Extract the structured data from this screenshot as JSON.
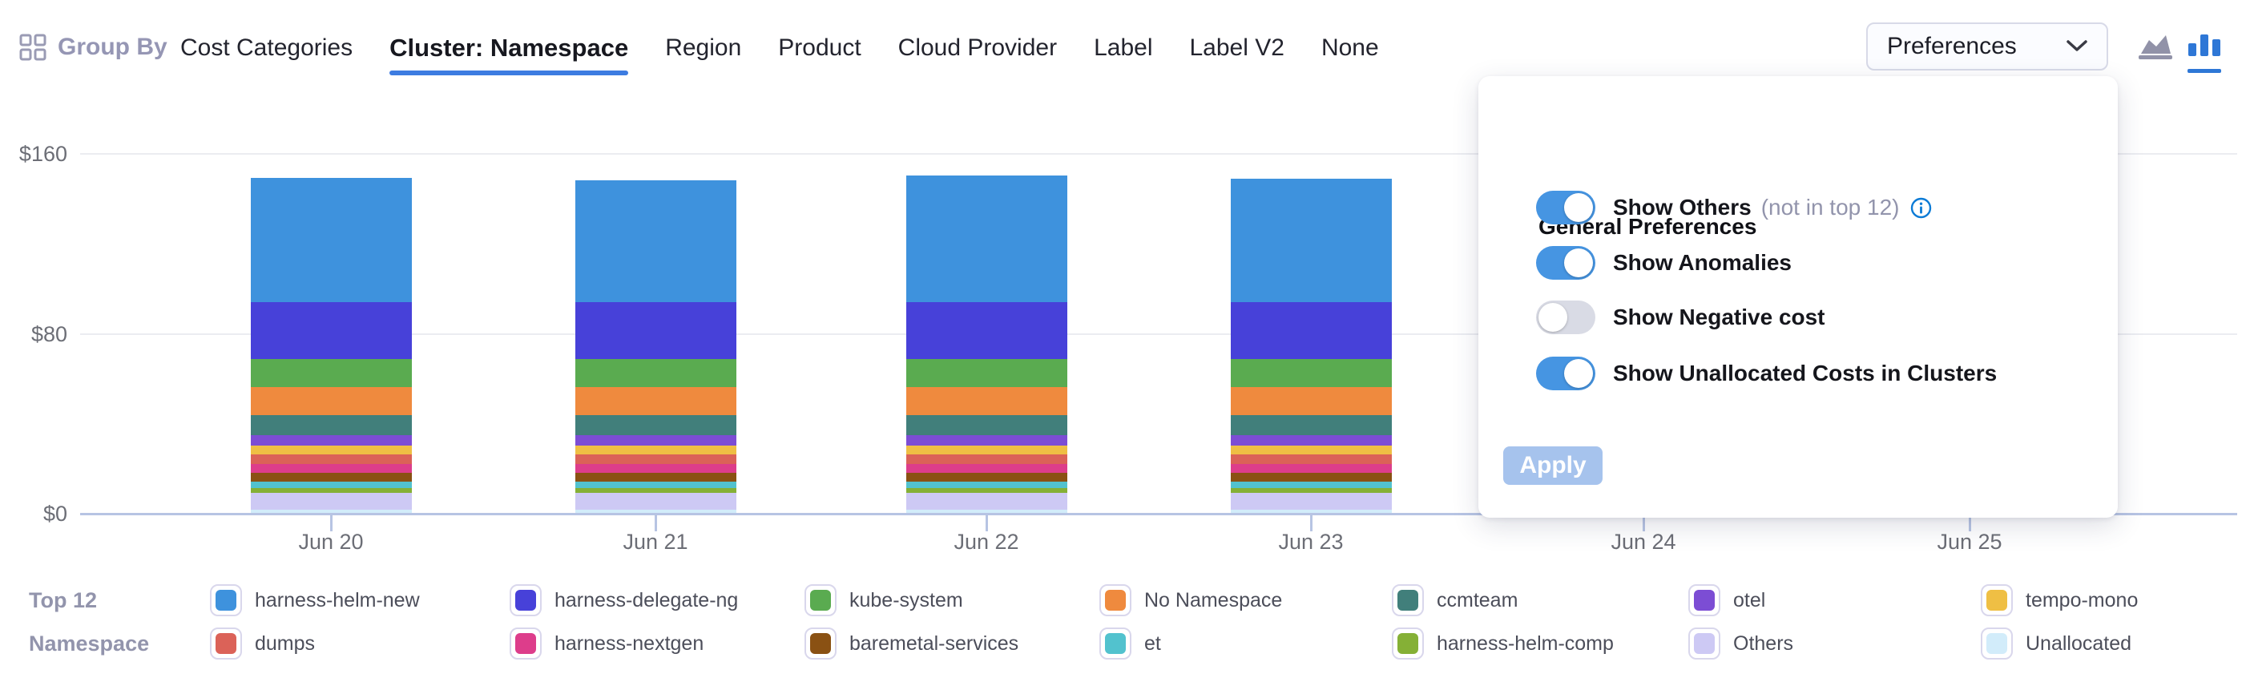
{
  "toolbar": {
    "group_by_label": "Group By",
    "tabs": [
      {
        "label": "Cost Categories",
        "active": false
      },
      {
        "label": "Cluster: Namespace",
        "active": true
      },
      {
        "label": "Region",
        "active": false
      },
      {
        "label": "Product",
        "active": false
      },
      {
        "label": "Cloud Provider",
        "active": false
      },
      {
        "label": "Label",
        "active": false
      },
      {
        "label": "Label V2",
        "active": false
      },
      {
        "label": "None",
        "active": false
      }
    ],
    "preferences_button_label": "Preferences",
    "active_chart_type": "bar"
  },
  "preferences_panel": {
    "title": "General Preferences",
    "toggles": [
      {
        "label": "Show Others",
        "suffix": "(not in top 12)",
        "info_icon": true,
        "state": "on"
      },
      {
        "label": "Show Anomalies",
        "suffix": "",
        "info_icon": false,
        "state": "on"
      },
      {
        "label": "Show Negative cost",
        "suffix": "",
        "info_icon": false,
        "state": "off"
      },
      {
        "label": "Show Unallocated Costs in Clusters",
        "suffix": "",
        "info_icon": false,
        "state": "on"
      }
    ],
    "apply_label": "Apply",
    "apply_enabled": false
  },
  "legend": {
    "title_line1": "Top 12",
    "title_line2": "Namespace"
  },
  "colors": {
    "accent_blue": "#3d7ce1",
    "toggle_on": "#4695e2",
    "apply_disabled": "#a6c3ed",
    "info_icon_blue": "#0b7bd6",
    "axis_line": "#b7c4e3",
    "gridline": "#ebecf1",
    "muted_text": "#9294ac",
    "chart_icon_gray": "#9192a8",
    "chart_icon_blue": "#2e77d6"
  },
  "chart_data": {
    "type": "bar",
    "stacked": true,
    "title": "",
    "xlabel": "",
    "ylabel": "",
    "ylim": [
      0,
      160
    ],
    "y_tick_labels": [
      "$160",
      "$80",
      "$0"
    ],
    "grid": "horizontal",
    "legend_position": "bottom",
    "categories": [
      "Jun 20",
      "Jun 21",
      "Jun 22",
      "Jun 23",
      "Jun 24",
      "Jun 25"
    ],
    "series": [
      {
        "name": "harness-helm-new",
        "color": "#3e92dd",
        "values": [
          55.4,
          54.0,
          56.2,
          55.0,
          null,
          null
        ]
      },
      {
        "name": "harness-delegate-ng",
        "color": "#4741d9",
        "values": [
          25.3,
          25.3,
          25.3,
          25.3,
          null,
          null
        ]
      },
      {
        "name": "kube-system",
        "color": "#5aab50",
        "values": [
          12.5,
          12.5,
          12.5,
          12.5,
          null,
          null
        ]
      },
      {
        "name": "No Namespace",
        "color": "#ef8a3e",
        "values": [
          12.5,
          12.5,
          12.5,
          12.5,
          null,
          null
        ]
      },
      {
        "name": "ccmteam",
        "color": "#417f7b",
        "values": [
          8.9,
          8.9,
          8.9,
          8.9,
          null,
          null
        ]
      },
      {
        "name": "otel",
        "color": "#7c4dd4",
        "values": [
          4.6,
          4.6,
          4.6,
          4.6,
          null,
          null
        ]
      },
      {
        "name": "tempo-mono",
        "color": "#efbf44",
        "values": [
          3.9,
          3.9,
          3.9,
          3.9,
          null,
          null
        ]
      },
      {
        "name": "dumps",
        "color": "#db6258",
        "values": [
          4.3,
          4.3,
          4.3,
          4.3,
          null,
          null
        ]
      },
      {
        "name": "harness-nextgen",
        "color": "#dd3d8b",
        "values": [
          3.9,
          3.9,
          3.9,
          3.9,
          null,
          null
        ]
      },
      {
        "name": "baremetal-services",
        "color": "#8a5113",
        "values": [
          3.9,
          3.9,
          3.9,
          3.9,
          null,
          null
        ]
      },
      {
        "name": "et",
        "color": "#52c2ce",
        "values": [
          2.9,
          2.9,
          2.9,
          2.9,
          null,
          null
        ]
      },
      {
        "name": "harness-helm-comp",
        "color": "#85b036",
        "values": [
          2.1,
          2.1,
          2.1,
          2.1,
          null,
          null
        ]
      },
      {
        "name": "Others",
        "color": "#cdc9f4",
        "values": [
          7.5,
          7.5,
          7.5,
          7.5,
          null,
          null
        ]
      },
      {
        "name": "Unallocated",
        "color": "#d2ecfa",
        "values": [
          1.8,
          1.8,
          1.8,
          1.8,
          null,
          null
        ]
      }
    ]
  }
}
